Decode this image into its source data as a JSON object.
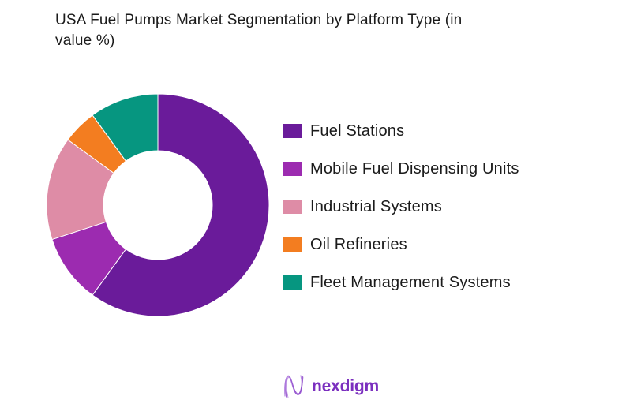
{
  "header": {
    "title_lines": [
      "USA Fuel Pumps Market Segmentation by Platform Type (in",
      "value %)"
    ]
  },
  "chart_data": {
    "type": "pie",
    "subtype": "donut",
    "title": "USA Fuel Pumps Market Segmentation by Platform Type (in value %)",
    "categories": [
      "Fuel Stations",
      "Mobile Fuel Dispensing Units",
      "Industrial Systems",
      "Oil Refineries",
      "Fleet Management Systems"
    ],
    "values": [
      60,
      10,
      15,
      5,
      10
    ],
    "unit": "percent",
    "colors": [
      "#6A1B9A",
      "#9C2BB0",
      "#DE8CA6",
      "#F37D20",
      "#069680"
    ],
    "start_angle_deg": 0,
    "direction": "clockwise",
    "inner_radius_ratio": 0.49,
    "legend_position": "right",
    "data_labels_shown": false,
    "background_color": "#FFFFFF",
    "title_color": "#1A1A1A"
  },
  "brand": {
    "logo_text": "nexdigm",
    "logo_color": "#7B2FBF",
    "logo_mark": "wave-n-icon"
  }
}
